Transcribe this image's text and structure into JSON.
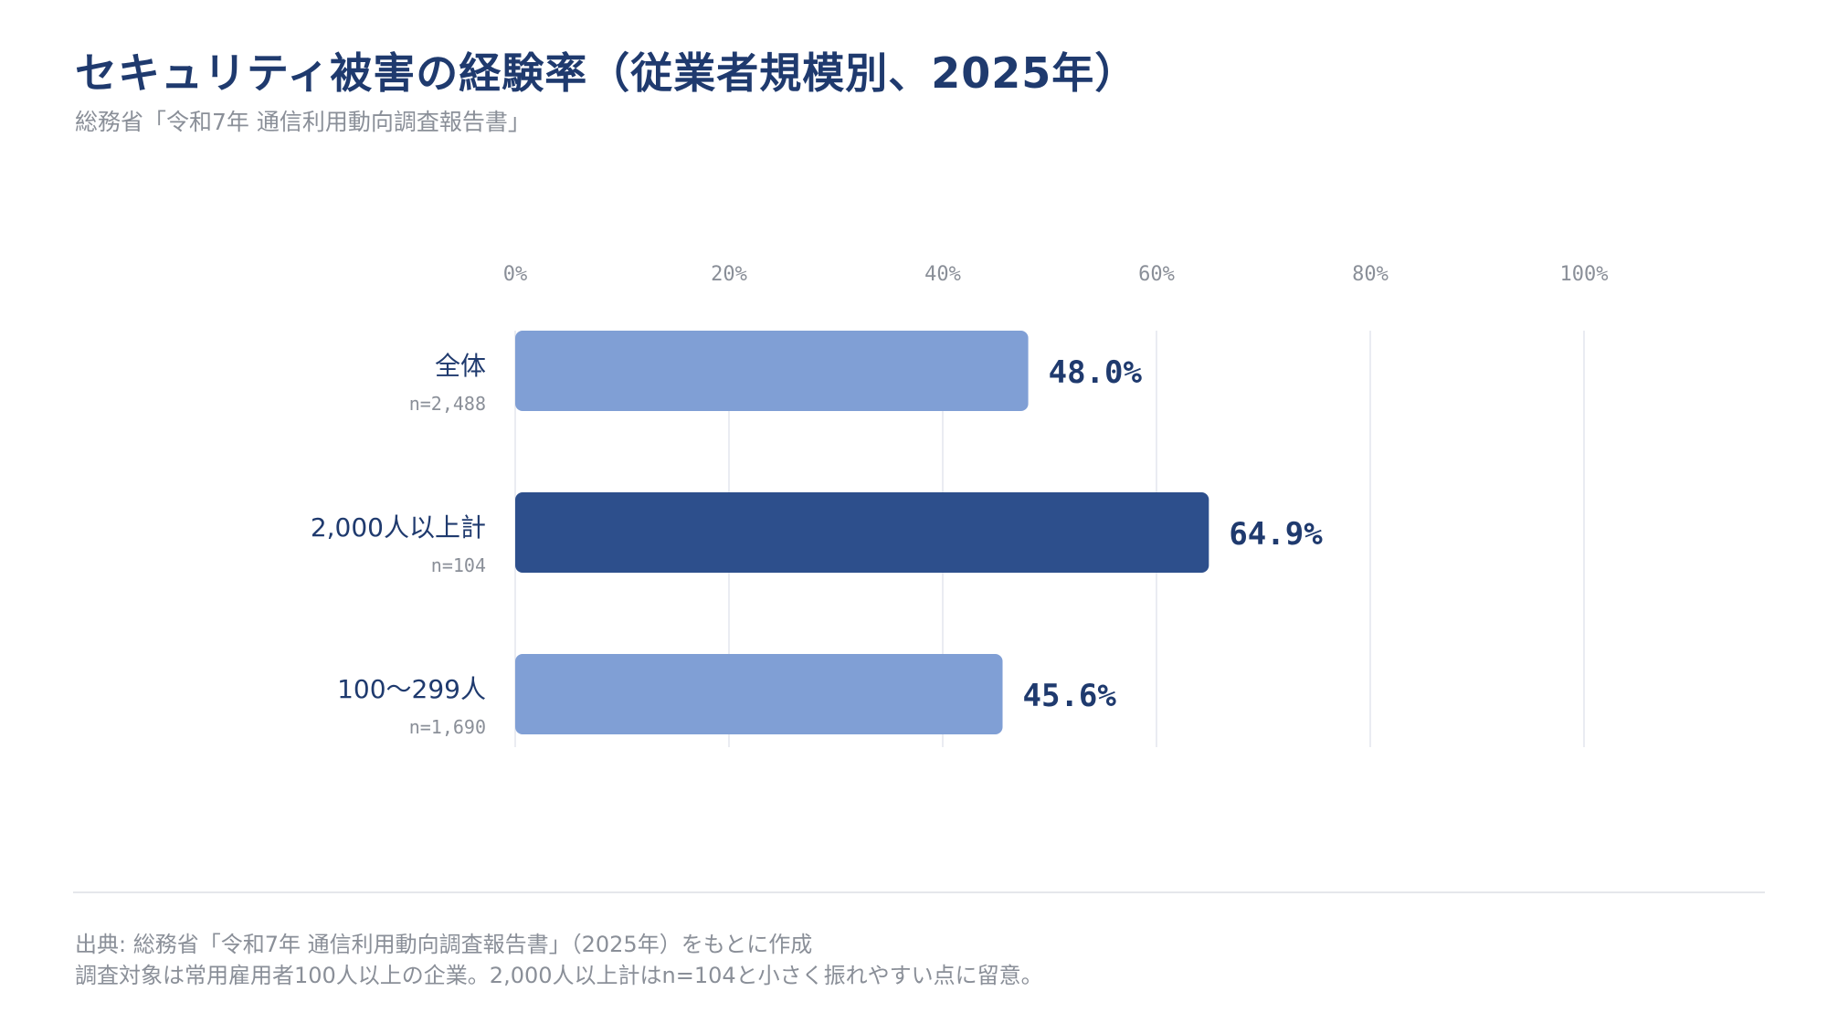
{
  "header": {
    "title": "セキュリティ被害の経験率（従業者規模別、2025年）",
    "subtitle": "総務省「令和7年 通信利用動向調査報告書」"
  },
  "footer": {
    "source": "出典: 総務省「令和7年 通信利用動向調査報告書」（2025年）をもとに作成",
    "note": "調査対象は常用雇用者100人以上の企業。2,000人以上計はn=104と小さく振れやすい点に留意。"
  },
  "colors": {
    "bar_default": "#809fd5",
    "bar_highlight": "#2d4f8c",
    "value_label": "#1f3a6e",
    "category_label": "#1f3a6e",
    "sample_label": "#8a8f98",
    "tick_label": "#8a8f98",
    "grid": "#e3e6ee"
  },
  "chart_data": {
    "type": "bar",
    "orientation": "horizontal",
    "categories": [
      "全体",
      "2,000人以上計",
      "100～299人"
    ],
    "sample_sizes": [
      "n=2,488",
      "n=104",
      "n=1,690"
    ],
    "values": [
      48.0,
      64.9,
      45.6
    ],
    "value_labels": [
      "48.0%",
      "64.9%",
      "45.6%"
    ],
    "highlight_index": 1,
    "xlim": [
      0,
      100
    ],
    "xticks": [
      0,
      20,
      40,
      60,
      80,
      100
    ],
    "xtick_labels": [
      "0%",
      "20%",
      "40%",
      "60%",
      "80%",
      "100%"
    ],
    "x_axis_position": "top",
    "grid": true,
    "legend": "none"
  }
}
